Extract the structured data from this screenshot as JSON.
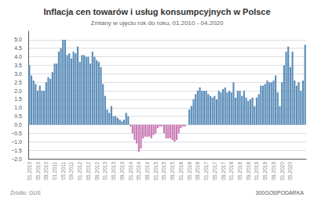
{
  "chart_data": {
    "type": "bar",
    "title": "Inflacja cen towarów i usług konsumpcyjnych w Polsce",
    "subtitle": "Zmiany w ujęciu rok do roku, 01.2010 - 04.2020",
    "annotations": [
      "Źródło: GUS",
      "300GOSPODARKA"
    ],
    "categories": [
      "01.2010",
      null,
      null,
      null,
      "05.2010",
      null,
      null,
      null,
      "09.2010",
      null,
      null,
      null,
      "01.2011",
      null,
      null,
      null,
      "05.2011",
      null,
      null,
      null,
      "09.2011",
      null,
      null,
      null,
      "01.2012",
      null,
      null,
      null,
      "05.2012",
      null,
      null,
      null,
      "09.2012",
      null,
      null,
      null,
      "01.2013",
      null,
      null,
      null,
      "05.2013",
      null,
      null,
      null,
      "09.2013",
      null,
      null,
      null,
      "01.2014",
      null,
      null,
      null,
      "05.2014",
      null,
      null,
      null,
      "09.2014",
      null,
      null,
      null,
      "01.2015",
      null,
      null,
      null,
      "05.2015",
      null,
      null,
      null,
      "09.2015",
      null,
      null,
      null,
      "01.2016",
      null,
      null,
      null,
      "05.2016",
      null,
      null,
      null,
      "09.2016",
      null,
      null,
      null,
      "01.2017",
      null,
      null,
      null,
      "05.2017",
      null,
      null,
      null,
      "09.2017",
      null,
      null,
      null,
      "01.2018",
      null,
      null,
      null,
      "05.2018",
      null,
      null,
      null,
      "09.2018",
      null,
      null,
      null,
      "01.2019",
      null,
      null,
      null,
      "05.2019",
      null,
      null,
      null,
      "09.2019",
      null,
      null,
      null,
      "01.2020",
      null,
      null,
      null,
      "05.2020",
      null,
      null,
      null,
      null,
      null,
      null,
      null
    ],
    "values": [
      3.5,
      2.9,
      2.6,
      2.4,
      2.0,
      2.3,
      2.0,
      2.0,
      2.5,
      2.8,
      2.7,
      3.1,
      3.6,
      3.6,
      4.3,
      4.5,
      5.0,
      5.0,
      4.1,
      4.2,
      3.9,
      4.3,
      4.2,
      4.6,
      3.7,
      4.1,
      4.1,
      4.0,
      4.0,
      3.6,
      4.3,
      4.0,
      3.8,
      3.7,
      3.4,
      2.4,
      1.7,
      0.9,
      0.7,
      1.1,
      0.5,
      0.5,
      0.4,
      0.3,
      0.2,
      0.3,
      0.7,
      0.5,
      -0.1,
      -0.5,
      -0.9,
      -1.1,
      -1.6,
      -1.4,
      -0.8,
      -0.7,
      -0.7,
      -0.7,
      -0.8,
      -0.6,
      -0.5,
      -0.2,
      -0.1,
      -0.1,
      -0.5,
      -0.8,
      -0.8,
      -0.8,
      -0.9,
      -1.0,
      -0.9,
      -0.5,
      -0.2,
      -0.1,
      -0.1,
      0.0,
      0.9,
      1.1,
      1.5,
      1.8,
      2.0,
      2.2,
      2.0,
      2.0,
      2.0,
      1.8,
      1.7,
      1.6,
      1.7,
      1.5,
      2.0,
      1.9,
      2.1,
      2.2,
      1.9,
      2.0,
      1.9,
      2.5,
      1.6,
      2.0,
      2.0,
      1.7,
      2.0,
      1.6,
      1.4,
      1.5,
      1.6,
      1.1,
      1.6,
      1.8,
      2.3,
      2.3,
      2.4,
      2.6,
      2.5,
      2.5,
      2.6,
      2.9,
      1.9,
      1.1,
      2.5,
      3.5,
      4.3,
      4.6,
      3.4,
      4.3,
      2.6,
      2.3,
      2.5,
      2.0,
      2.6,
      4.7
    ],
    "colors": [
      "#5b8db8",
      "#5b8db8",
      "#5b8db8",
      "#5b8db8",
      "#5b8db8",
      "#5b8db8",
      "#5b8db8",
      "#5b8db8",
      "#5b8db8",
      "#5b8db8",
      "#5b8db8",
      "#5b8db8",
      "#5b8db8",
      "#5b8db8",
      "#5b8db8",
      "#5b8db8",
      "#5b8db8",
      "#5b8db8",
      "#5b8db8",
      "#5b8db8",
      "#5b8db8",
      "#5b8db8",
      "#5b8db8",
      "#5b8db8",
      "#5b8db8",
      "#5b8db8",
      "#5b8db8",
      "#5b8db8",
      "#5b8db8",
      "#5b8db8",
      "#5b8db8",
      "#5b8db8",
      "#5b8db8",
      "#5b8db8",
      "#5b8db8",
      "#5b8db8",
      "#5b8db8",
      "#5b8db8",
      "#5b8db8",
      "#5b8db8",
      "#5b8db8",
      "#5b8db8",
      "#5b8db8",
      "#5b8db8",
      "#5b8db8",
      "#5b8db8",
      "#5b8db8",
      "#5b8db8",
      "#c97bb5",
      "#c97bb5",
      "#c97bb5",
      "#c97bb5",
      "#c97bb5",
      "#c97bb5",
      "#c97bb5",
      "#c97bb5",
      "#c97bb5",
      "#c97bb5",
      "#c97bb5",
      "#c97bb5",
      "#c97bb5",
      "#c97bb5",
      "#c97bb5",
      "#c97bb5",
      "#c97bb5",
      "#c97bb5",
      "#c97bb5",
      "#c97bb5",
      "#c97bb5",
      "#c97bb5",
      "#c97bb5",
      "#c97bb5",
      "#c97bb5",
      "#c97bb5",
      "#c97bb5",
      "#5b8db8",
      "#5b8db8",
      "#5b8db8",
      "#5b8db8",
      "#5b8db8",
      "#5b8db8",
      "#5b8db8",
      "#5b8db8",
      "#5b8db8",
      "#5b8db8",
      "#5b8db8",
      "#5b8db8",
      "#5b8db8",
      "#5b8db8",
      "#5b8db8",
      "#5b8db8",
      "#5b8db8",
      "#5b8db8",
      "#5b8db8",
      "#5b8db8",
      "#5b8db8",
      "#5b8db8",
      "#5b8db8",
      "#5b8db8",
      "#5b8db8",
      "#5b8db8",
      "#5b8db8",
      "#5b8db8",
      "#5b8db8",
      "#5b8db8",
      "#5b8db8",
      "#5b8db8",
      "#5b8db8",
      "#5b8db8",
      "#5b8db8",
      "#5b8db8",
      "#5b8db8",
      "#5b8db8",
      "#5b8db8",
      "#5b8db8",
      "#5b8db8",
      "#5b8db8",
      "#5b8db8",
      "#5b8db8",
      "#5b8db8",
      "#5b8db8",
      "#5b8db8",
      "#5b8db8",
      "#5b8db8",
      "#5b8db8",
      "#5b8db8",
      "#5b8db8",
      "#5b8db8",
      "#5b8db8",
      "#5b8db8",
      "#5b8db8",
      "#5b8db8"
    ],
    "ylim": [
      -2,
      5.5
    ],
    "yticks": [
      {
        "value": -2,
        "label": "−2.0"
      },
      {
        "value": -1.5,
        "label": "−1.5"
      },
      {
        "value": -1,
        "label": "−1.0"
      },
      {
        "value": -0.5,
        "label": "−0.5"
      },
      {
        "value": 0,
        "label": "0.0"
      },
      0.5,
      {
        "value": 1,
        "label": "1.0"
      },
      1.5,
      {
        "value": 2,
        "label": "2.0"
      },
      2.5,
      {
        "value": 3,
        "label": "3.0"
      },
      3.5,
      {
        "value": 4,
        "label": "4.0"
      },
      4.5,
      {
        "value": 5,
        "label": "5.0"
      }
    ],
    "grid": true
  }
}
